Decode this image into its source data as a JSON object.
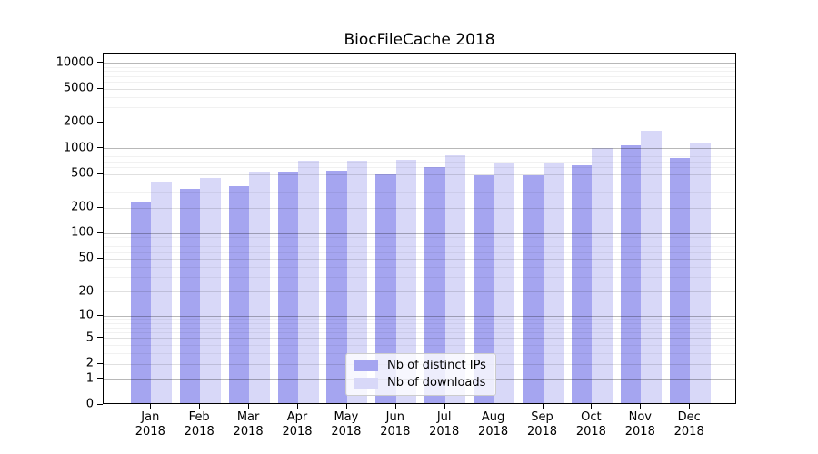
{
  "chart_data": {
    "type": "bar",
    "title": "BiocFileCache 2018",
    "categories": [
      "Jan",
      "Feb",
      "Mar",
      "Apr",
      "May",
      "Jun",
      "Jul",
      "Aug",
      "Sep",
      "Oct",
      "Nov",
      "Dec"
    ],
    "x_year": "2018",
    "series": [
      {
        "name": "Nb of distinct IPs",
        "color": "#a5a5f0",
        "values": [
          220,
          320,
          350,
          510,
          525,
          480,
          585,
          465,
          465,
          615,
          1050,
          745
        ]
      },
      {
        "name": "Nb of downloads",
        "color": "#d8d8f8",
        "values": [
          395,
          435,
          515,
          690,
          690,
          705,
          800,
          645,
          655,
          960,
          1550,
          1120
        ]
      }
    ],
    "y_scale": "log1p",
    "y_ticks": [
      0,
      1,
      2,
      5,
      10,
      20,
      50,
      100,
      200,
      500,
      1000,
      2000,
      5000,
      10000
    ],
    "ylim": [
      0,
      13000
    ],
    "xlabel": "",
    "ylabel": "",
    "grid": true,
    "legend_position": "lower center"
  }
}
